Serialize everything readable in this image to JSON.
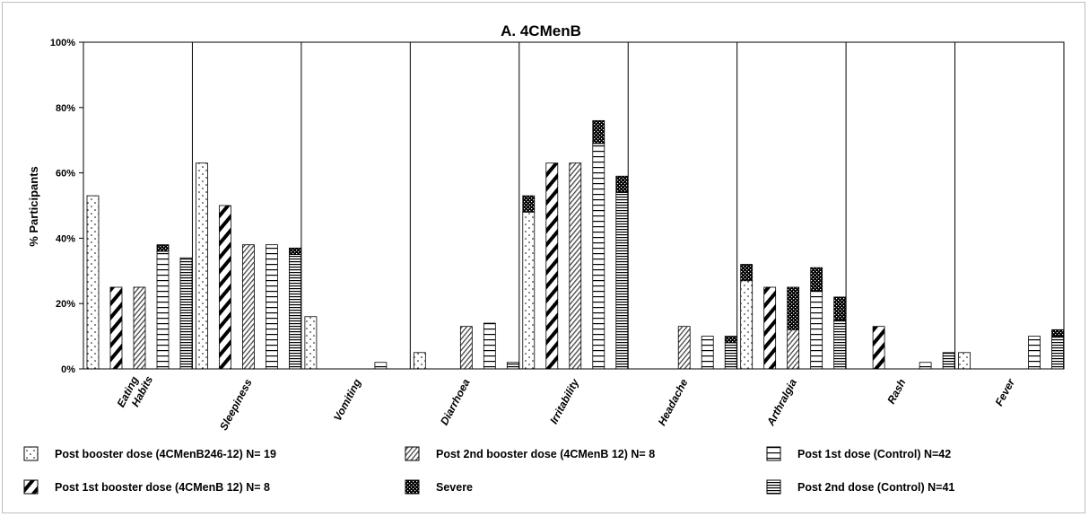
{
  "chart_data": {
    "type": "bar",
    "title": "A. 4CMenB",
    "ylabel": "% Participants",
    "xlabel": "",
    "ylim": [
      0,
      100
    ],
    "yticks": [
      "0%",
      "20%",
      "40%",
      "60%",
      "80%",
      "100%"
    ],
    "categories": [
      "Eating Habits",
      "Sleepiness",
      "Vomiting",
      "Diarrhoea",
      "Irritability",
      "Headache",
      "Arthralgia",
      "Rash",
      "Fever"
    ],
    "series": [
      {
        "name": "Post booster dose  (4CMenB246-12) N= 19",
        "pattern": "dots",
        "values": [
          53,
          63,
          16,
          5,
          53,
          0,
          32,
          0,
          5
        ],
        "severe": [
          0,
          0,
          0,
          0,
          5,
          0,
          5,
          0,
          0
        ]
      },
      {
        "name": "Post 1st booster dose (4CMenB 12) N= 8",
        "pattern": "thick-diagonal",
        "values": [
          25,
          50,
          0,
          0,
          63,
          0,
          25,
          13,
          0
        ],
        "severe": [
          0,
          0,
          0,
          0,
          0,
          0,
          0,
          0,
          0
        ]
      },
      {
        "name": "Post 2nd booster dose (4CMenB 12) N= 8",
        "pattern": "thin-diagonal",
        "values": [
          25,
          38,
          0,
          13,
          63,
          13,
          25,
          0,
          0
        ],
        "severe": [
          0,
          0,
          0,
          0,
          0,
          0,
          13,
          0,
          0
        ]
      },
      {
        "name": "Post 1st dose (Control) N=42",
        "pattern": "horizontal-wide",
        "values": [
          38,
          38,
          2,
          14,
          76,
          10,
          31,
          2,
          10
        ],
        "severe": [
          2,
          0,
          0,
          0,
          7,
          0,
          7,
          0,
          0
        ]
      },
      {
        "name": "Post 2nd dose (Control) N=41",
        "pattern": "horizontal-dense",
        "values": [
          34,
          37,
          0,
          2,
          59,
          10,
          22,
          5,
          12
        ],
        "severe": [
          0,
          2,
          0,
          0,
          5,
          2,
          7,
          0,
          2
        ]
      }
    ],
    "severe_label": "Severe",
    "legend_placement": "bottom",
    "grid": false
  }
}
